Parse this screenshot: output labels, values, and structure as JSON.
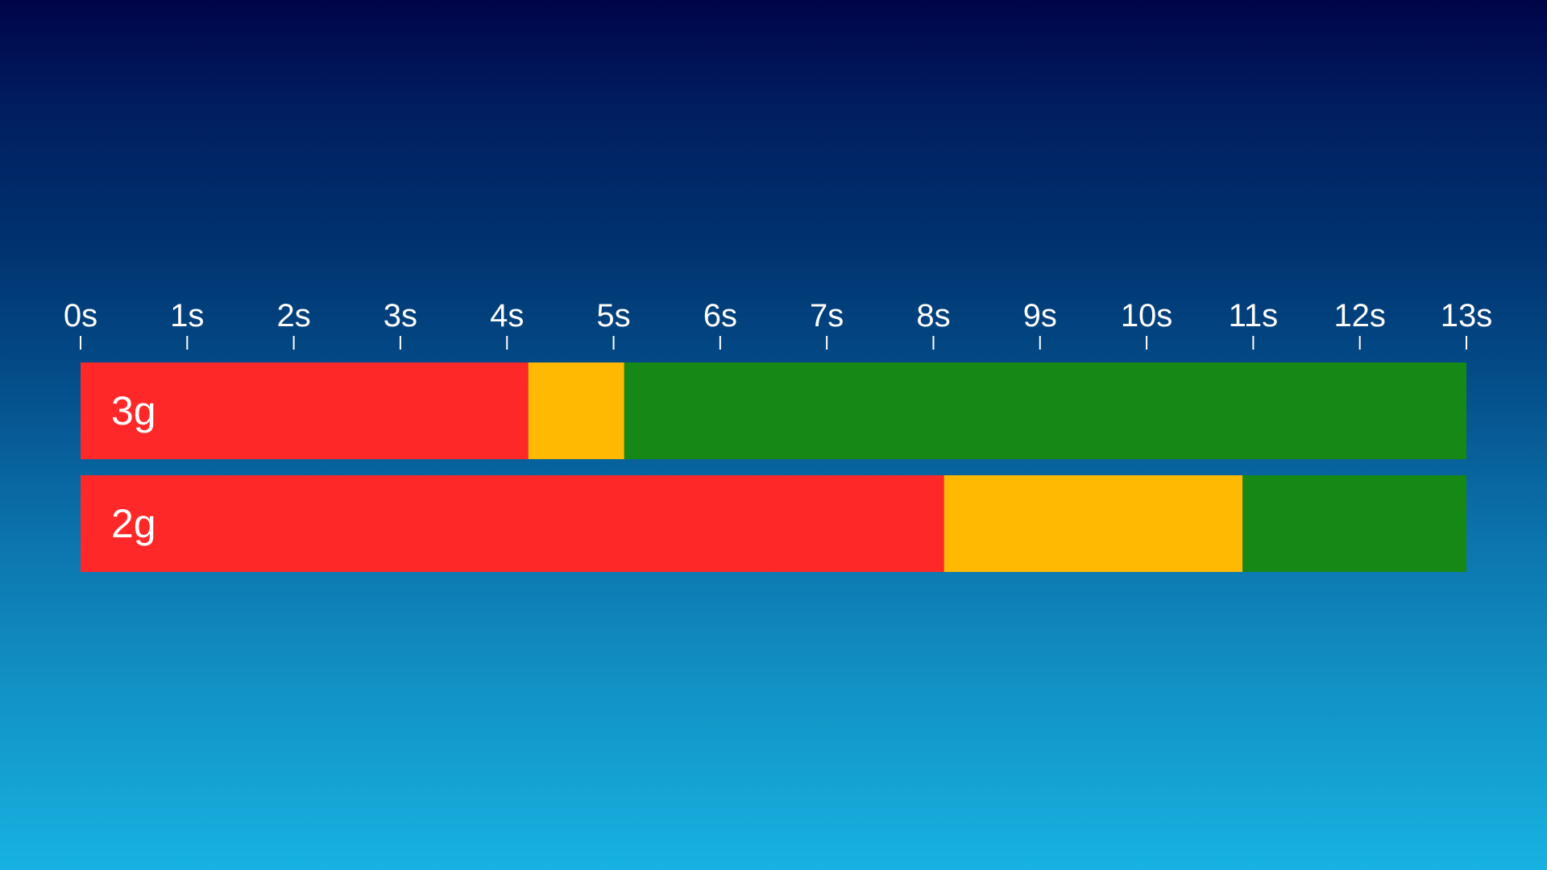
{
  "chart_data": {
    "type": "bar",
    "orientation": "horizontal",
    "stacked": true,
    "x_unit": "s",
    "xlim": [
      0,
      13
    ],
    "ticks": [
      "0s",
      "1s",
      "2s",
      "3s",
      "4s",
      "5s",
      "6s",
      "7s",
      "8s",
      "9s",
      "10s",
      "11s",
      "12s",
      "13s"
    ],
    "categories": [
      "3g",
      "2g"
    ],
    "series": [
      {
        "color": "#ff2828",
        "values": [
          4.2,
          8.1
        ]
      },
      {
        "color": "#ffb900",
        "values": [
          0.9,
          2.8
        ]
      },
      {
        "color": "#168816",
        "values": [
          7.9,
          2.1
        ]
      }
    ],
    "grid": false,
    "legend": "none",
    "title": "",
    "xlabel": "",
    "ylabel": ""
  }
}
